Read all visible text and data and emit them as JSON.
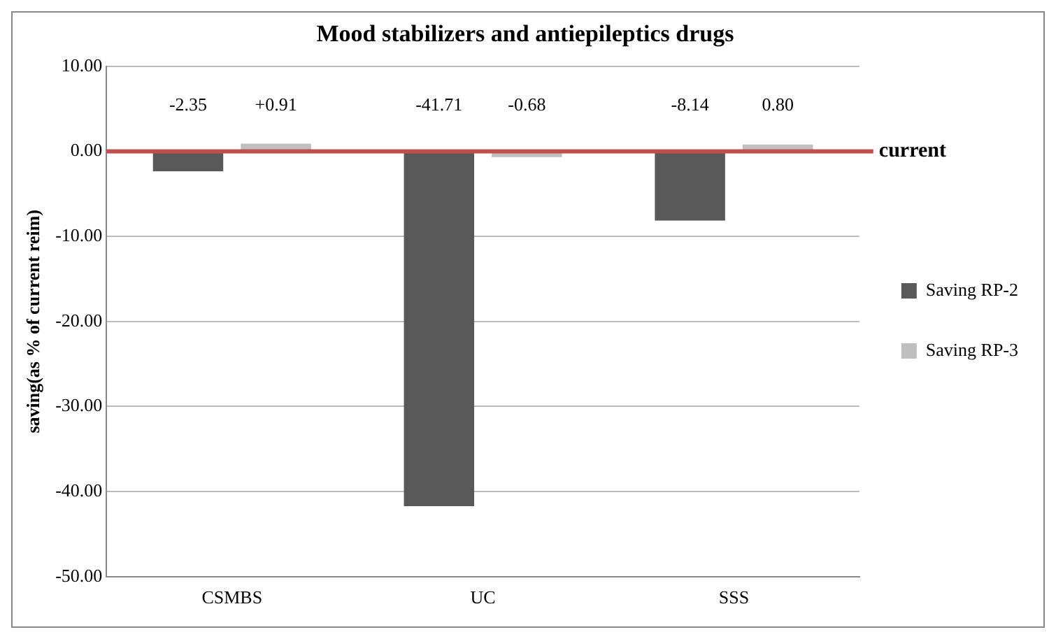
{
  "chart_data": {
    "type": "bar",
    "title": "Mood stabilizers and antiepileptics drugs",
    "ylabel": "saving(as % of current reim)",
    "categories": [
      "CSMBS",
      "UC",
      "SSS"
    ],
    "series": [
      {
        "name": "Saving RP-2",
        "color": "#595959",
        "values": [
          -2.35,
          -41.71,
          -8.14
        ],
        "value_labels": [
          "-2.35",
          "-41.71",
          "-8.14"
        ]
      },
      {
        "name": "Saving RP-3",
        "color": "#bfbfbf",
        "values": [
          0.91,
          -0.68,
          0.8
        ],
        "value_labels": [
          "+0.91",
          "-0.68",
          "0.80"
        ]
      }
    ],
    "ylim": [
      -50,
      10
    ],
    "yticks": [
      {
        "value": -50,
        "label": "-50.00"
      },
      {
        "value": -40,
        "label": "-40.00"
      },
      {
        "value": -30,
        "label": "-30.00"
      },
      {
        "value": -20,
        "label": "-20.00"
      },
      {
        "value": -10,
        "label": "-10.00"
      },
      {
        "value": 0,
        "label": "0.00"
      },
      {
        "value": 10,
        "label": "10.00"
      }
    ],
    "grid": "y",
    "legend": "right",
    "ref_lines": [
      {
        "axis": "y",
        "value": 0,
        "label": "current",
        "color": "#c0504d"
      }
    ]
  }
}
